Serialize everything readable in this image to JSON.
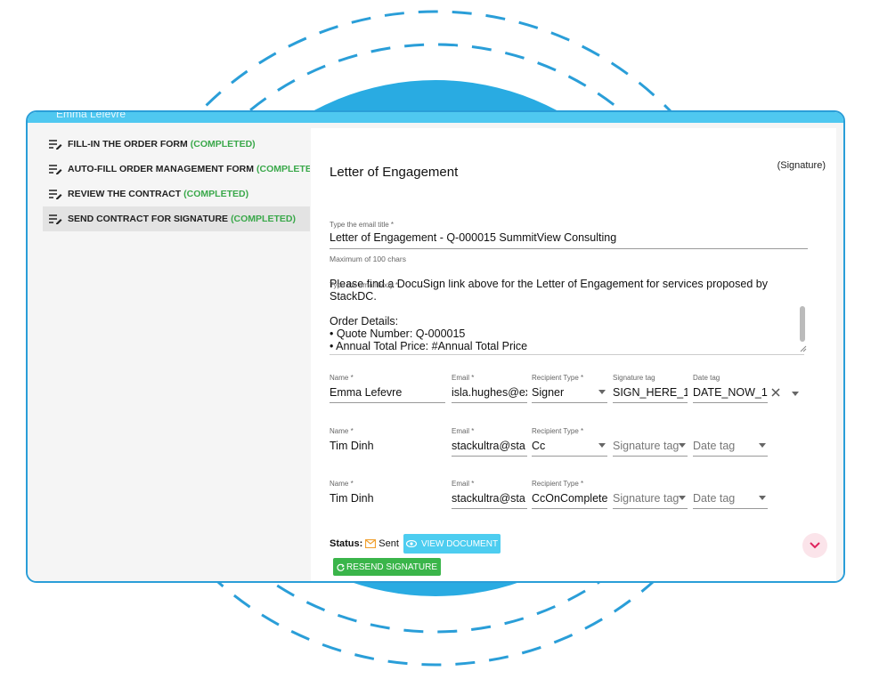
{
  "window": {
    "header_text": "Emma Lefevre"
  },
  "steps": [
    {
      "label": "FILL-IN THE ORDER FORM",
      "status": "(COMPLETED)"
    },
    {
      "label": "AUTO-FILL ORDER MANAGEMENT FORM",
      "status": "(COMPLETE"
    },
    {
      "label": "REVIEW THE CONTRACT",
      "status": "(COMPLETED)"
    },
    {
      "label": "SEND CONTRACT FOR SIGNATURE",
      "status": "(COMPLETED)"
    }
  ],
  "document": {
    "title": "Letter of Engagement",
    "signature_note": "(Signature)",
    "email_title_label": "Type the email title *",
    "email_title_value": "Letter of Engagement - Q-000015 SummitView Consulting",
    "email_title_hint": "Maximum of 100 chars",
    "email_body_label": "Type the email body *",
    "email_body_lines": [
      "Please find a DocuSign link above for the Letter of Engagement for services proposed by",
      "StackDC.",
      "",
      "Order Details:",
      "•     Quote Number:   Q-000015",
      "•     Annual Total Price: #Annual Total Price"
    ]
  },
  "recipients": {
    "labels": {
      "name": "Name *",
      "email": "Email *",
      "type": "Recipient Type *",
      "sig_tag": "Signature tag",
      "date_tag": "Date tag"
    },
    "rows": [
      {
        "name": "Emma Lefevre",
        "email": "isla.hughes@ex",
        "type": "Signer",
        "sig_tag": "SIGN_HERE_1",
        "date_tag": "DATE_NOW_1"
      },
      {
        "name": "Tim Dinh",
        "email": "stackultra@sta",
        "type": "Cc",
        "sig_tag": "Signature tag",
        "date_tag": "Date tag"
      },
      {
        "name": "Tim Dinh",
        "email": "stackultra@sta",
        "type": "CcOnComplete",
        "sig_tag": "Signature tag",
        "date_tag": "Date tag"
      }
    ]
  },
  "footer": {
    "status_label": "Status:",
    "status_value": "Sent",
    "view_button": "VIEW DOCUMENT",
    "resend_button": "RESEND SIGNATURE"
  },
  "colors": {
    "accent": "#4dcdf0",
    "success": "#3ab54a",
    "border": "#2a9ed8",
    "deco": "#29abe2"
  }
}
